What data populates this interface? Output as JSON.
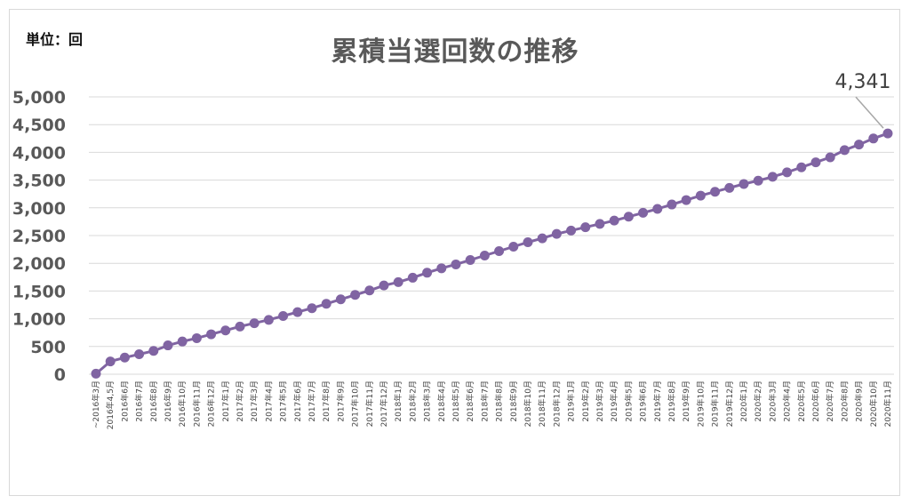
{
  "unit_label": "単位：回",
  "chart_data": {
    "type": "line",
    "title": "累積当選回数の推移",
    "xlabel": "",
    "ylabel": "",
    "ylim": [
      0,
      5000
    ],
    "yticks": [
      0,
      500,
      1000,
      1500,
      2000,
      2500,
      3000,
      3500,
      4000,
      4500,
      5000
    ],
    "ytick_labels": [
      "0",
      "500",
      "1,000",
      "1,500",
      "2,000",
      "2,500",
      "3,000",
      "3,500",
      "4,000",
      "4,500",
      "5,000"
    ],
    "grid": true,
    "legend": "none",
    "series_color": "#8064a2",
    "categories": [
      "~2016年3月",
      "2016年4,5月",
      "2016年6月",
      "2016年7月",
      "2016年8月",
      "2016年9月",
      "2016年10月",
      "2016年11月",
      "2016年12月",
      "2017年1月",
      "2017年2月",
      "2017年3月",
      "2017年4月",
      "2017年5月",
      "2017年6月",
      "2017年7月",
      "2017年8月",
      "2017年9月",
      "2017年10月",
      "2017年11月",
      "2017年12月",
      "2018年1月",
      "2018年2月",
      "2018年3月",
      "2018年4月",
      "2018年5月",
      "2018年6月",
      "2018年7月",
      "2018年8月",
      "2018年9月",
      "2018年10月",
      "2018年11月",
      "2018年12月",
      "2019年1月",
      "2019年2月",
      "2019年3月",
      "2019年4月",
      "2019年5月",
      "2019年6月",
      "2019年7月",
      "2019年8月",
      "2019年9月",
      "2019年10月",
      "2019年11月",
      "2019年12月",
      "2020年1月",
      "2020年2月",
      "2020年3月",
      "2020年4月",
      "2020年5月",
      "2020年6月",
      "2020年7月",
      "2020年8月",
      "2020年9月",
      "2020年10月",
      "2020年11月"
    ],
    "series": [
      {
        "values": [
          10,
          230,
          300,
          360,
          420,
          520,
          590,
          650,
          720,
          790,
          860,
          920,
          980,
          1050,
          1120,
          1190,
          1270,
          1350,
          1430,
          1510,
          1600,
          1660,
          1740,
          1830,
          1910,
          1980,
          2060,
          2140,
          2220,
          2300,
          2380,
          2450,
          2530,
          2590,
          2650,
          2710,
          2770,
          2840,
          2910,
          2980,
          3060,
          3140,
          3220,
          3290,
          3360,
          3430,
          3490,
          3560,
          3640,
          3730,
          3820,
          3910,
          4040,
          4140,
          4250,
          4341
        ]
      }
    ],
    "annotations": [
      {
        "category": "2020年11月",
        "text": "4,341"
      }
    ]
  }
}
